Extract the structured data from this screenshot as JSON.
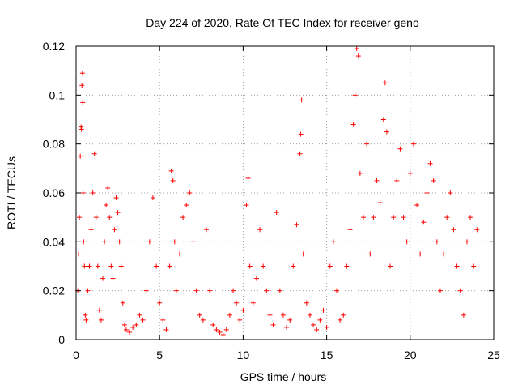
{
  "chart_data": {
    "type": "scatter",
    "title": "Day 224 of 2020, Rate Of TEC Index for receiver geno",
    "xlabel": "GPS time / hours",
    "ylabel": "ROTI / TECUs",
    "xlim": [
      0,
      25
    ],
    "ylim": [
      0,
      0.12
    ],
    "x_ticks": [
      0,
      5,
      10,
      15,
      20,
      25
    ],
    "x_tick_labels": [
      "0",
      "5",
      "10",
      "15",
      "20",
      "25"
    ],
    "y_ticks": [
      0,
      0.02,
      0.04,
      0.06,
      0.08,
      0.1,
      0.12
    ],
    "y_tick_labels": [
      "0",
      "0.02",
      "0.04",
      "0.06",
      "0.08",
      "0.1",
      "0.12"
    ],
    "grid": true,
    "marker": "+",
    "color": "#ff0000",
    "series": [
      {
        "name": "",
        "points": [
          [
            0.1,
            0.02
          ],
          [
            0.15,
            0.035
          ],
          [
            0.2,
            0.05
          ],
          [
            0.25,
            0.075
          ],
          [
            0.3,
            0.087
          ],
          [
            0.32,
            0.086
          ],
          [
            0.35,
            0.104
          ],
          [
            0.38,
            0.109
          ],
          [
            0.4,
            0.097
          ],
          [
            0.42,
            0.06
          ],
          [
            0.45,
            0.04
          ],
          [
            0.5,
            0.03
          ],
          [
            0.55,
            0.01
          ],
          [
            0.6,
            0.008
          ],
          [
            0.7,
            0.02
          ],
          [
            0.8,
            0.03
          ],
          [
            0.9,
            0.045
          ],
          [
            1.0,
            0.06
          ],
          [
            1.1,
            0.076
          ],
          [
            1.2,
            0.05
          ],
          [
            1.3,
            0.03
          ],
          [
            1.4,
            0.012
          ],
          [
            1.5,
            0.008
          ],
          [
            1.6,
            0.025
          ],
          [
            1.7,
            0.04
          ],
          [
            1.8,
            0.055
          ],
          [
            1.9,
            0.062
          ],
          [
            2.0,
            0.05
          ],
          [
            2.1,
            0.03
          ],
          [
            2.2,
            0.025
          ],
          [
            2.3,
            0.045
          ],
          [
            2.4,
            0.058
          ],
          [
            2.5,
            0.052
          ],
          [
            2.6,
            0.04
          ],
          [
            2.7,
            0.03
          ],
          [
            2.8,
            0.015
          ],
          [
            2.9,
            0.006
          ],
          [
            3.0,
            0.004
          ],
          [
            3.2,
            0.003
          ],
          [
            3.4,
            0.005
          ],
          [
            3.6,
            0.006
          ],
          [
            3.8,
            0.01
          ],
          [
            4.0,
            0.008
          ],
          [
            4.2,
            0.02
          ],
          [
            4.4,
            0.04
          ],
          [
            4.6,
            0.058
          ],
          [
            4.8,
            0.03
          ],
          [
            5.0,
            0.015
          ],
          [
            5.2,
            0.008
          ],
          [
            5.4,
            0.004
          ],
          [
            5.6,
            0.03
          ],
          [
            5.7,
            0.069
          ],
          [
            5.8,
            0.065
          ],
          [
            5.9,
            0.04
          ],
          [
            6.0,
            0.02
          ],
          [
            6.2,
            0.035
          ],
          [
            6.4,
            0.05
          ],
          [
            6.6,
            0.055
          ],
          [
            6.8,
            0.06
          ],
          [
            7.0,
            0.04
          ],
          [
            7.2,
            0.02
          ],
          [
            7.4,
            0.01
          ],
          [
            7.6,
            0.008
          ],
          [
            7.8,
            0.045
          ],
          [
            8.0,
            0.02
          ],
          [
            8.2,
            0.006
          ],
          [
            8.4,
            0.004
          ],
          [
            8.6,
            0.003
          ],
          [
            8.8,
            0.002
          ],
          [
            9.0,
            0.004
          ],
          [
            9.2,
            0.01
          ],
          [
            9.4,
            0.02
          ],
          [
            9.6,
            0.015
          ],
          [
            9.8,
            0.008
          ],
          [
            10.0,
            0.012
          ],
          [
            10.2,
            0.055
          ],
          [
            10.3,
            0.066
          ],
          [
            10.4,
            0.03
          ],
          [
            10.6,
            0.015
          ],
          [
            10.8,
            0.025
          ],
          [
            11.0,
            0.045
          ],
          [
            11.2,
            0.03
          ],
          [
            11.4,
            0.02
          ],
          [
            11.6,
            0.01
          ],
          [
            11.8,
            0.006
          ],
          [
            12.0,
            0.052
          ],
          [
            12.2,
            0.02
          ],
          [
            12.4,
            0.01
          ],
          [
            12.6,
            0.005
          ],
          [
            12.8,
            0.008
          ],
          [
            13.0,
            0.03
          ],
          [
            13.2,
            0.047
          ],
          [
            13.4,
            0.076
          ],
          [
            13.45,
            0.084
          ],
          [
            13.5,
            0.098
          ],
          [
            13.6,
            0.035
          ],
          [
            13.8,
            0.015
          ],
          [
            14.0,
            0.01
          ],
          [
            14.2,
            0.006
          ],
          [
            14.4,
            0.004
          ],
          [
            14.6,
            0.008
          ],
          [
            14.8,
            0.012
          ],
          [
            15.0,
            0.005
          ],
          [
            15.2,
            0.03
          ],
          [
            15.4,
            0.04
          ],
          [
            15.6,
            0.02
          ],
          [
            15.8,
            0.008
          ],
          [
            16.0,
            0.01
          ],
          [
            16.2,
            0.03
          ],
          [
            16.4,
            0.045
          ],
          [
            16.6,
            0.088
          ],
          [
            16.7,
            0.1
          ],
          [
            16.8,
            0.119
          ],
          [
            16.9,
            0.116
          ],
          [
            17.0,
            0.068
          ],
          [
            17.2,
            0.05
          ],
          [
            17.4,
            0.08
          ],
          [
            17.6,
            0.035
          ],
          [
            17.8,
            0.05
          ],
          [
            18.0,
            0.065
          ],
          [
            18.2,
            0.056
          ],
          [
            18.4,
            0.09
          ],
          [
            18.5,
            0.105
          ],
          [
            18.6,
            0.085
          ],
          [
            18.8,
            0.03
          ],
          [
            19.0,
            0.05
          ],
          [
            19.2,
            0.065
          ],
          [
            19.4,
            0.078
          ],
          [
            19.6,
            0.05
          ],
          [
            19.8,
            0.04
          ],
          [
            20.0,
            0.068
          ],
          [
            20.2,
            0.08
          ],
          [
            20.4,
            0.055
          ],
          [
            20.6,
            0.035
          ],
          [
            20.8,
            0.048
          ],
          [
            21.0,
            0.06
          ],
          [
            21.2,
            0.072
          ],
          [
            21.4,
            0.065
          ],
          [
            21.6,
            0.04
          ],
          [
            21.8,
            0.02
          ],
          [
            22.0,
            0.035
          ],
          [
            22.2,
            0.05
          ],
          [
            22.4,
            0.06
          ],
          [
            22.6,
            0.045
          ],
          [
            22.8,
            0.03
          ],
          [
            23.0,
            0.02
          ],
          [
            23.2,
            0.01
          ],
          [
            23.4,
            0.04
          ],
          [
            23.6,
            0.05
          ],
          [
            23.8,
            0.03
          ],
          [
            24.0,
            0.045
          ]
        ]
      }
    ]
  }
}
